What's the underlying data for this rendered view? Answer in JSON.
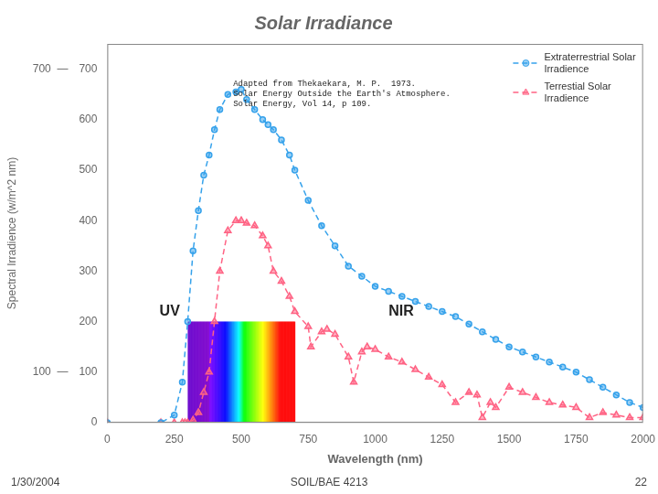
{
  "chart_data": {
    "type": "line",
    "title": "Solar Irradiance",
    "xlabel": "Wavelength (nm)",
    "ylabel": "Spectral Irradience (w/m^2 nm)",
    "xlim": [
      0,
      2000
    ],
    "ylim": [
      0,
      750
    ],
    "xticks": [
      0,
      250,
      500,
      750,
      1000,
      1250,
      1500,
      1750,
      2000
    ],
    "yticks": [
      0,
      100,
      200,
      300,
      400,
      500,
      600,
      700
    ],
    "grid": false,
    "legend": "upper right",
    "series": [
      {
        "name": "Extraterrestrial Solar\nIrradience",
        "marker": "circle",
        "line_style": "dashed",
        "x": [
          0,
          200,
          250,
          280,
          300,
          320,
          340,
          360,
          380,
          400,
          420,
          450,
          480,
          500,
          520,
          550,
          580,
          600,
          620,
          650,
          680,
          700,
          750,
          800,
          850,
          900,
          950,
          1000,
          1050,
          1100,
          1150,
          1200,
          1250,
          1300,
          1350,
          1400,
          1450,
          1500,
          1550,
          1600,
          1650,
          1700,
          1750,
          1800,
          1850,
          1900,
          1950,
          2000
        ],
        "values": [
          0,
          0,
          15,
          80,
          200,
          340,
          420,
          490,
          530,
          580,
          620,
          650,
          655,
          660,
          640,
          620,
          600,
          590,
          580,
          560,
          530,
          500,
          440,
          390,
          350,
          310,
          290,
          270,
          260,
          250,
          240,
          230,
          220,
          210,
          195,
          180,
          165,
          150,
          140,
          130,
          120,
          110,
          100,
          85,
          70,
          55,
          40,
          30
        ]
      },
      {
        "name": "Terrestial Solar\nIrradience",
        "marker": "triangle",
        "line_style": "dashed",
        "x": [
          0,
          200,
          250,
          280,
          290,
          300,
          320,
          340,
          360,
          380,
          400,
          420,
          450,
          480,
          500,
          520,
          550,
          580,
          600,
          620,
          650,
          680,
          700,
          750,
          760,
          800,
          820,
          850,
          900,
          920,
          950,
          970,
          1000,
          1050,
          1100,
          1150,
          1200,
          1250,
          1300,
          1350,
          1380,
          1400,
          1430,
          1450,
          1500,
          1550,
          1600,
          1650,
          1700,
          1750,
          1800,
          1850,
          1900,
          1950,
          2000
        ],
        "values": [
          0,
          0,
          0,
          0,
          0,
          0,
          5,
          20,
          60,
          100,
          200,
          300,
          380,
          400,
          400,
          395,
          390,
          370,
          350,
          300,
          280,
          250,
          220,
          190,
          150,
          180,
          185,
          175,
          130,
          80,
          140,
          150,
          145,
          130,
          120,
          105,
          90,
          75,
          40,
          60,
          55,
          10,
          40,
          30,
          70,
          60,
          50,
          40,
          35,
          30,
          10,
          20,
          15,
          10,
          10
        ]
      }
    ],
    "spectrum": {
      "xmin": 300,
      "xmax": 700,
      "ymin": 0,
      "ymax": 200
    },
    "annotations": [
      {
        "text": "UV",
        "x": 195,
        "y": 205
      },
      {
        "text": "NIR",
        "x": 1050,
        "y": 205
      },
      {
        "text": "Adapted from Thekaekara, M. P.  1973.\nSolar Energy Outside the Earth's Atmosphere.\nSolar Energy, Vol 14, p 109.",
        "x": 470,
        "y": 680
      },
      {
        "text": "700  —",
        "y": 700
      },
      {
        "text": "100  —",
        "y": 100
      }
    ],
    "footer": [
      "1/30/2004",
      "SOIL/BAE 4213",
      "22"
    ]
  }
}
